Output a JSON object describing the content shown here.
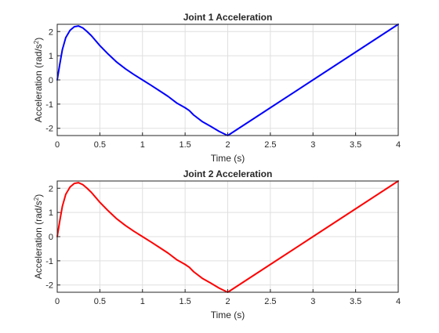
{
  "chart_data": [
    {
      "type": "line",
      "title": "Joint 1 Acceleration",
      "xlabel": "Time (s)",
      "ylabel_main": "Acceleration (rad/s",
      "ylabel_sup": "2",
      "ylabel_close": ")",
      "xlim": [
        0,
        4
      ],
      "ylim": [
        -2.3,
        2.3
      ],
      "grid": true,
      "x_ticks": [
        "0",
        "0.5",
        "1",
        "1.5",
        "2",
        "2.5",
        "3",
        "3.5",
        "4"
      ],
      "x_tick_values": [
        0,
        0.5,
        1,
        1.5,
        2,
        2.5,
        3,
        3.5,
        4
      ],
      "y_ticks": [
        "-2",
        "-1",
        "0",
        "1",
        "2"
      ],
      "y_tick_values": [
        -2,
        -1,
        0,
        1,
        2
      ],
      "series": [
        {
          "color": "#0000ff",
          "x": [
            0,
            0.03,
            0.06,
            0.1,
            0.15,
            0.2,
            0.25,
            0.3,
            0.35,
            0.4,
            0.5,
            0.6,
            0.7,
            0.8,
            0.9,
            1.0,
            1.1,
            1.2,
            1.3,
            1.4,
            1.5,
            1.55,
            1.6,
            1.7,
            1.8,
            1.9,
            2.0,
            2.5,
            3.0,
            3.5,
            4.0
          ],
          "y": [
            0.0,
            0.65,
            1.25,
            1.75,
            2.05,
            2.2,
            2.23,
            2.15,
            2.0,
            1.83,
            1.42,
            1.06,
            0.73,
            0.46,
            0.22,
            0.0,
            -0.22,
            -0.45,
            -0.68,
            -0.95,
            -1.15,
            -1.27,
            -1.45,
            -1.72,
            -1.92,
            -2.13,
            -2.3,
            -1.15,
            0.0,
            1.15,
            2.3
          ]
        }
      ]
    },
    {
      "type": "line",
      "title": "Joint 2 Acceleration",
      "xlabel": "Time (s)",
      "ylabel_main": "Acceleration (rad/s",
      "ylabel_sup": "2",
      "ylabel_close": ")",
      "xlim": [
        0,
        4
      ],
      "ylim": [
        -2.3,
        2.3
      ],
      "grid": true,
      "x_ticks": [
        "0",
        "0.5",
        "1",
        "1.5",
        "2",
        "2.5",
        "3",
        "3.5",
        "4"
      ],
      "x_tick_values": [
        0,
        0.5,
        1,
        1.5,
        2,
        2.5,
        3,
        3.5,
        4
      ],
      "y_ticks": [
        "-2",
        "-1",
        "0",
        "1",
        "2"
      ],
      "y_tick_values": [
        -2,
        -1,
        0,
        1,
        2
      ],
      "series": [
        {
          "color": "#ff0000",
          "x": [
            0,
            0.03,
            0.06,
            0.1,
            0.15,
            0.2,
            0.25,
            0.3,
            0.35,
            0.4,
            0.5,
            0.6,
            0.7,
            0.8,
            0.9,
            1.0,
            1.1,
            1.2,
            1.3,
            1.4,
            1.5,
            1.55,
            1.6,
            1.7,
            1.8,
            1.9,
            2.0,
            2.5,
            3.0,
            3.5,
            4.0
          ],
          "y": [
            0.0,
            0.65,
            1.25,
            1.75,
            2.05,
            2.2,
            2.23,
            2.15,
            2.0,
            1.83,
            1.42,
            1.06,
            0.73,
            0.46,
            0.22,
            0.0,
            -0.22,
            -0.45,
            -0.68,
            -0.95,
            -1.15,
            -1.27,
            -1.45,
            -1.72,
            -1.92,
            -2.13,
            -2.3,
            -1.15,
            0.0,
            1.15,
            2.3
          ]
        }
      ]
    }
  ]
}
